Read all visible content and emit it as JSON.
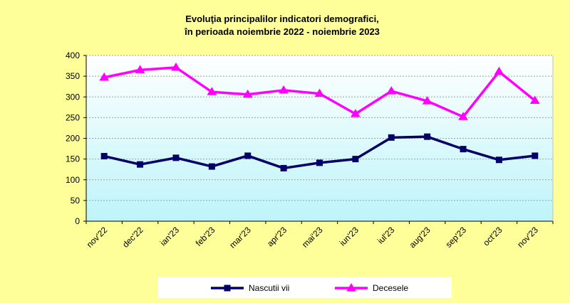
{
  "chart_data": {
    "type": "line",
    "title": "Evoluţia principalilor indicatori demografici,",
    "subtitle": "în perioada noiembrie 2022 - noiembrie 2023",
    "categories": [
      "nov'22",
      "dec'22",
      "ian'23",
      "feb'23",
      "mar'23",
      "apr'23",
      "mai'23",
      "iun'23",
      "iul'23",
      "aug'23",
      "sep'23",
      "oct'23",
      "nov'23"
    ],
    "ylim": [
      0,
      400
    ],
    "yticks": [
      0,
      50,
      100,
      150,
      200,
      250,
      300,
      350,
      400
    ],
    "grid": true,
    "legend_position": "bottom",
    "series": [
      {
        "name": "Nascutii vii",
        "color": "#000066",
        "marker": "square",
        "values": [
          157,
          137,
          153,
          132,
          158,
          128,
          141,
          150,
          202,
          204,
          174,
          148,
          158
        ]
      },
      {
        "name": "Decesele",
        "color": "#ff00ff",
        "marker": "triangle",
        "values": [
          347,
          365,
          371,
          312,
          306,
          316,
          308,
          259,
          314,
          290,
          252,
          361,
          291
        ]
      }
    ]
  },
  "colors": {
    "background": "#ffff99",
    "plot_gradient_top": "#ffffff",
    "plot_gradient_bottom": "#bdf4f9",
    "legend_background": "#ffffff"
  }
}
